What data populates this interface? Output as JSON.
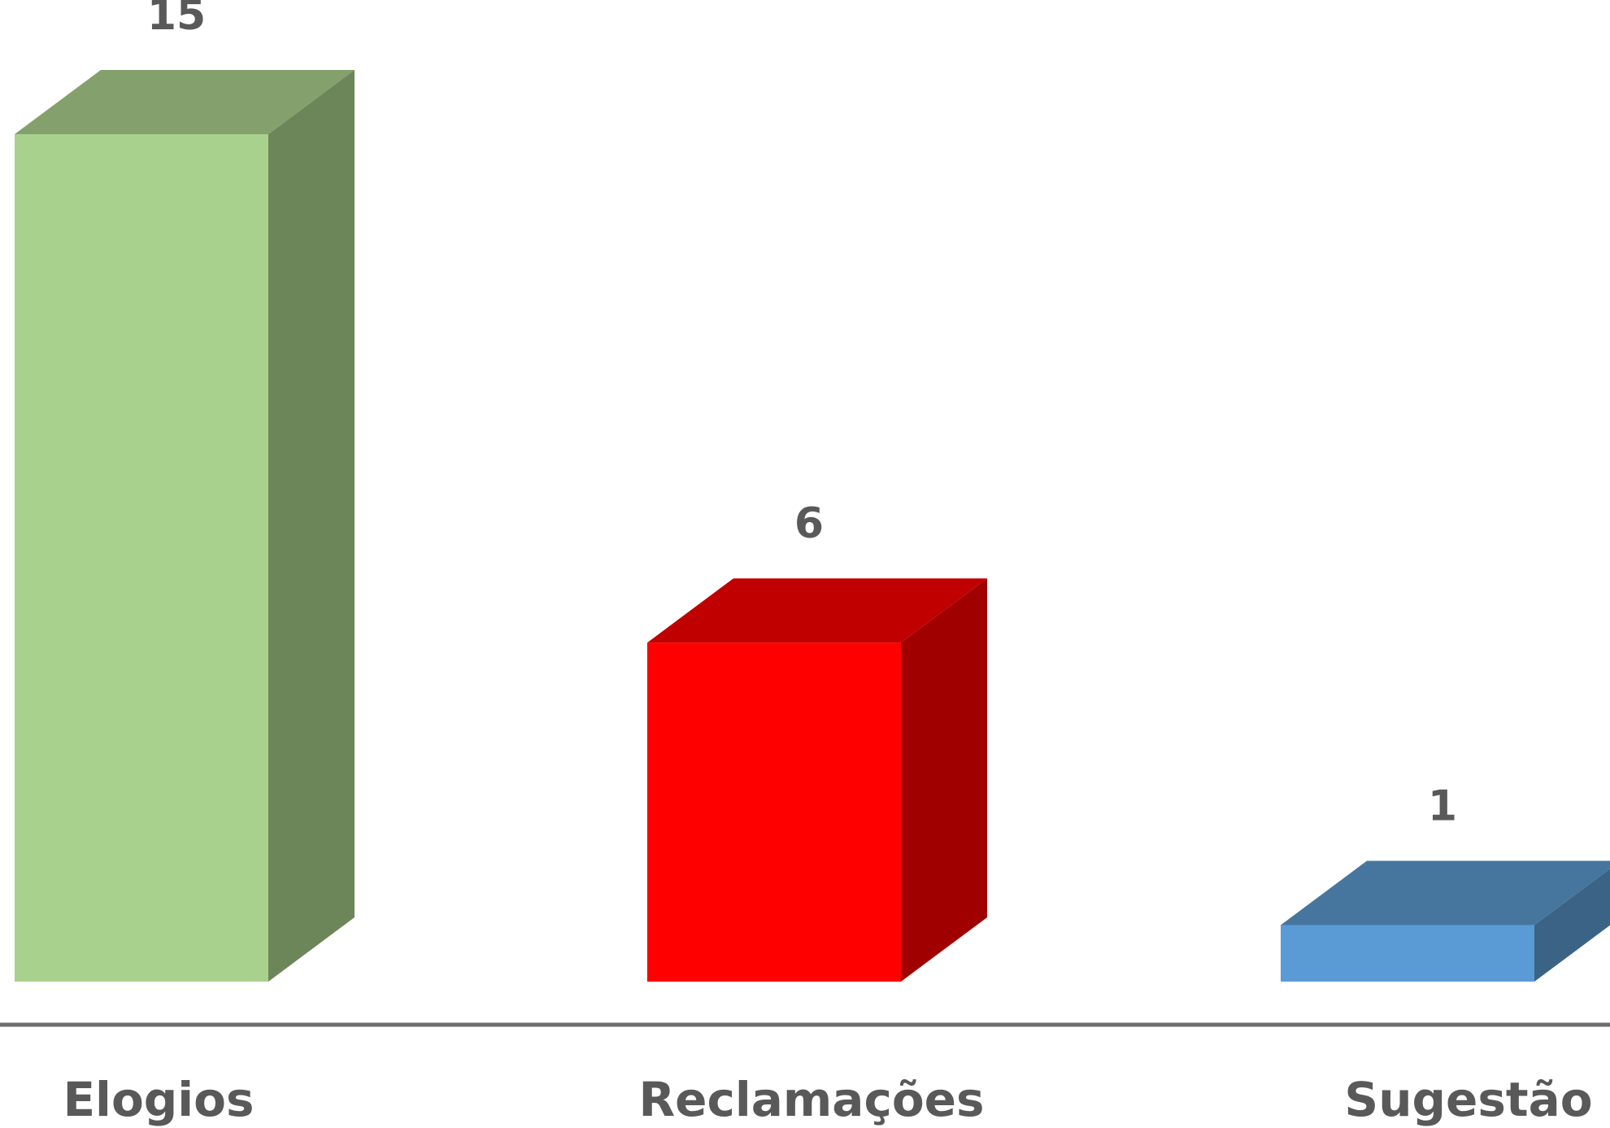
{
  "chart_data": {
    "type": "bar",
    "style": "3d-column",
    "categories": [
      "Elogios",
      "Reclamações",
      "Sugestão"
    ],
    "values": [
      15,
      6,
      1
    ],
    "data_labels": [
      "15",
      "6",
      "1"
    ],
    "ylim": [
      0,
      15
    ],
    "grid": false,
    "legend": "none",
    "colors": {
      "front": [
        "#a9d18e",
        "#ff0000",
        "#5b9bd5"
      ],
      "top": [
        "#84a06c",
        "#c00000",
        "#46769e"
      ],
      "side": [
        "#6c8659",
        "#a00000",
        "#3b6385"
      ],
      "axis": "#6d6d6d",
      "text": "#595959"
    }
  }
}
